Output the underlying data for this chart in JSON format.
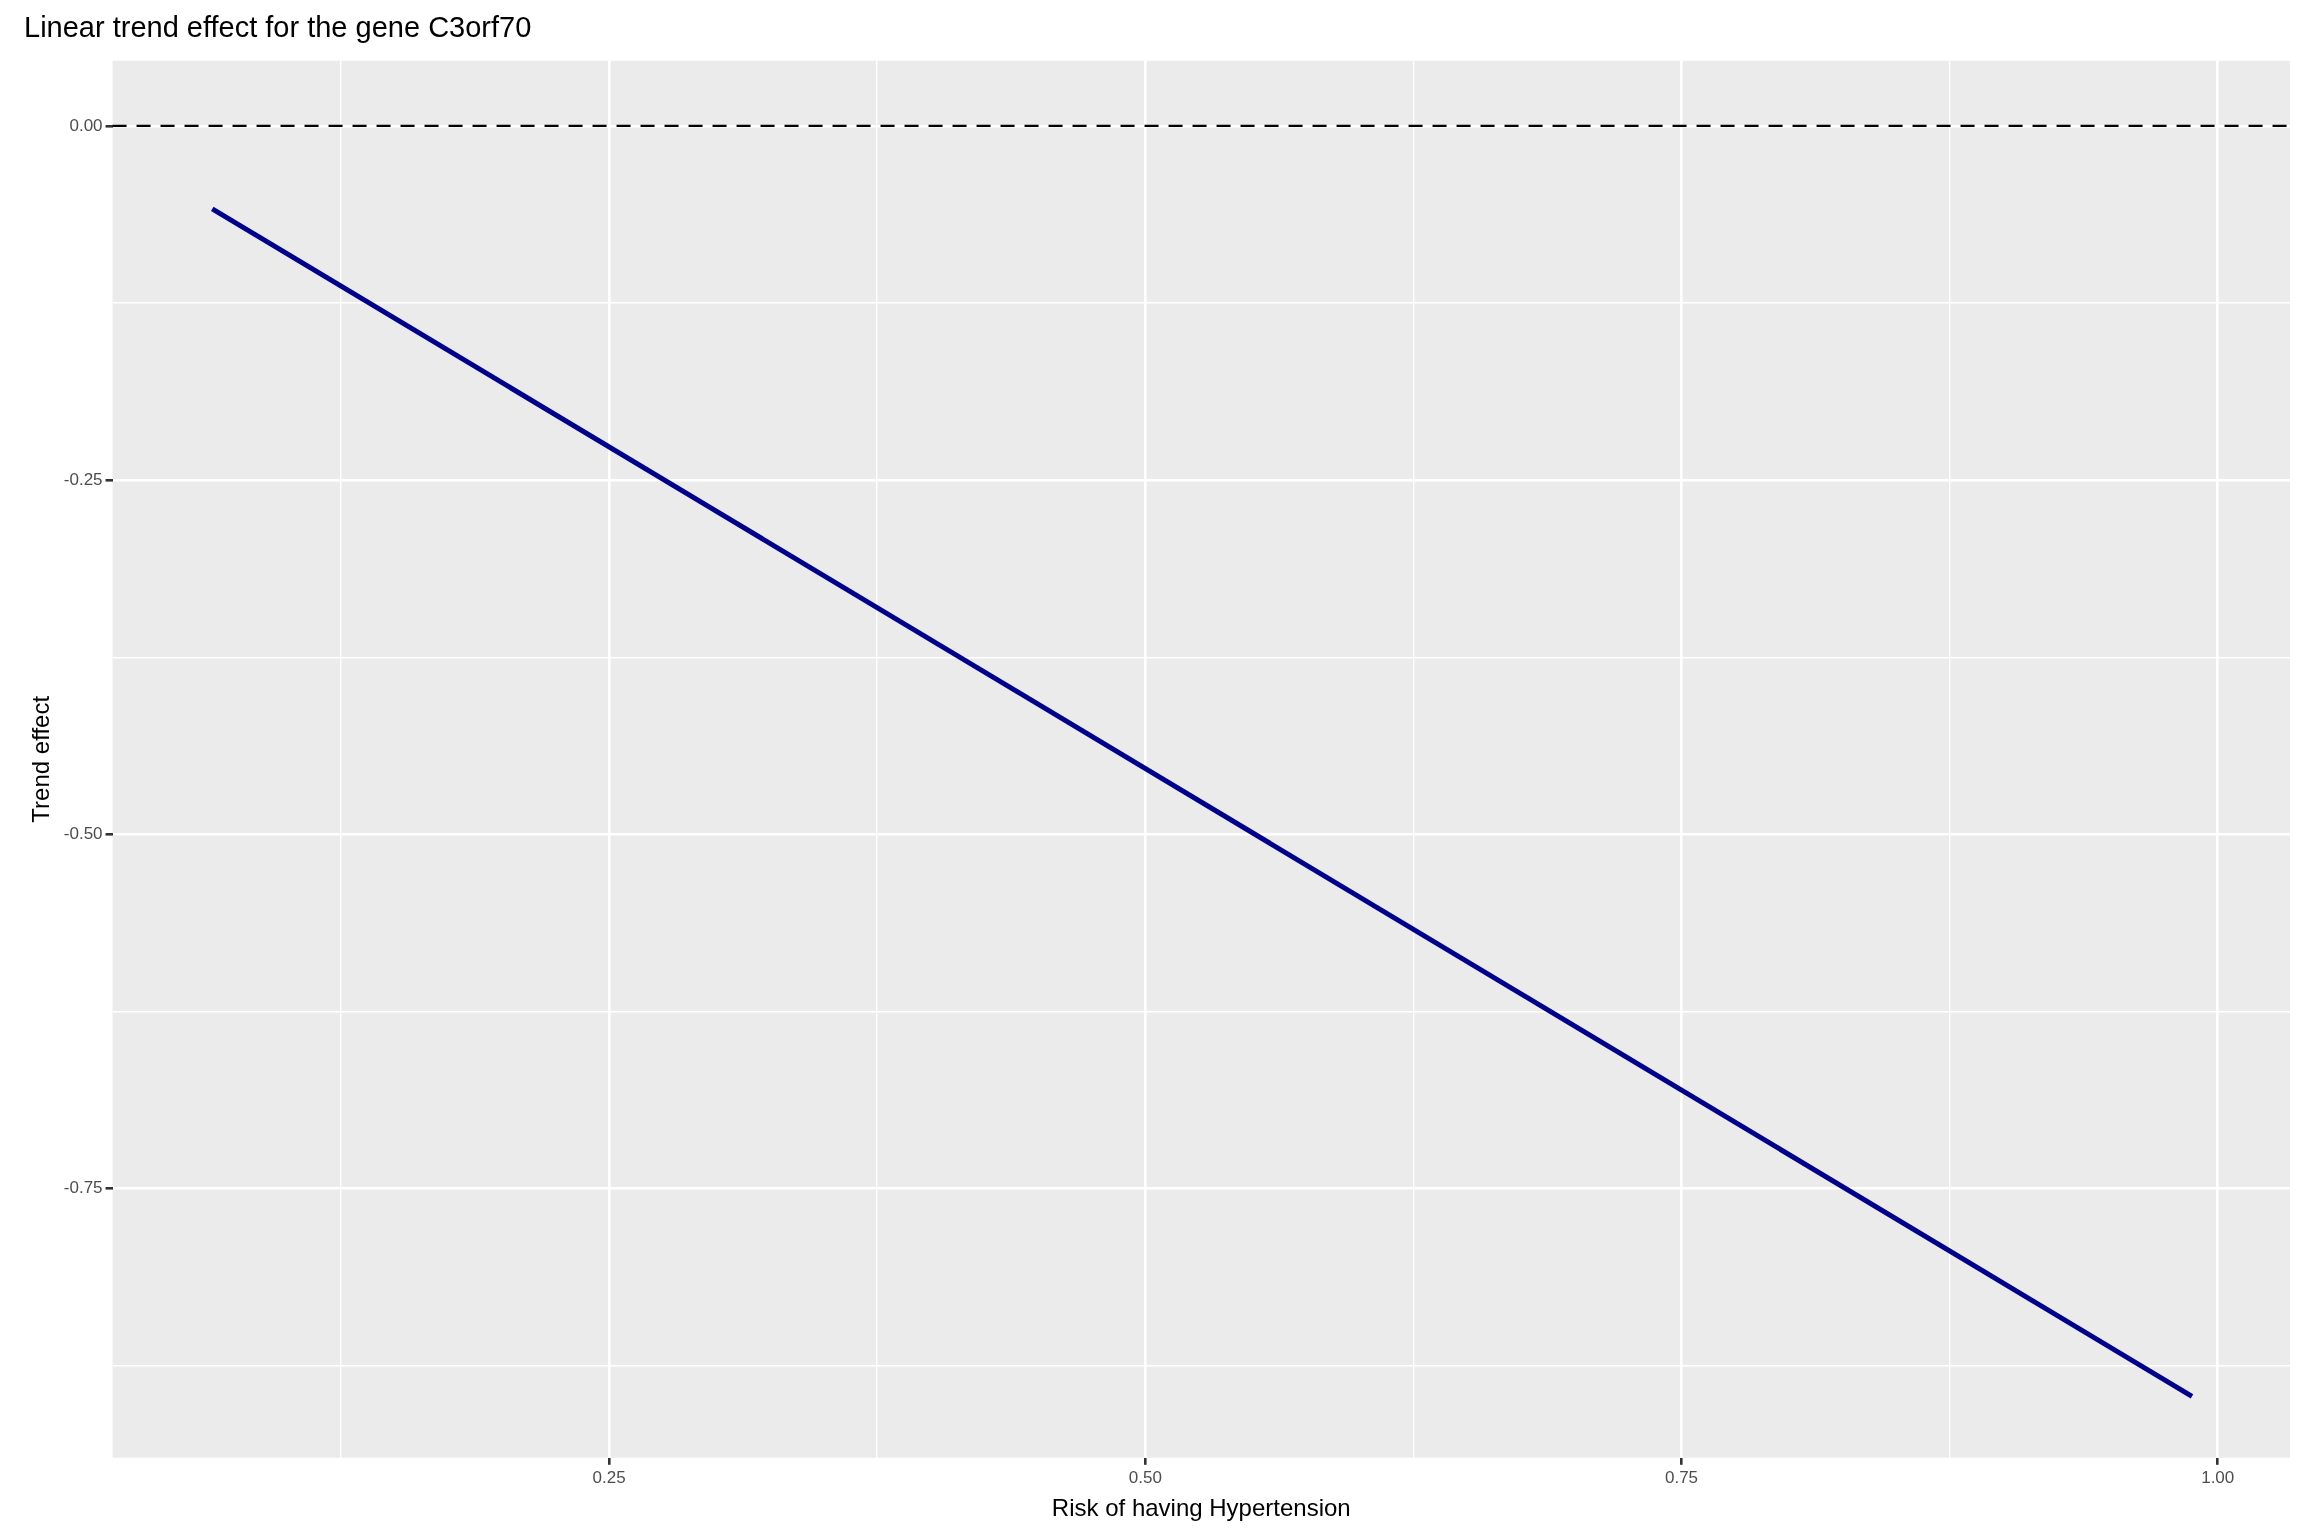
{
  "chart_data": {
    "type": "line",
    "title": "Linear trend effect for the gene C3orf70",
    "xlabel": "Risk of having Hypertension",
    "ylabel": "Trend effect",
    "x": [
      0.065,
      0.988
    ],
    "series": [
      {
        "color": "#00008b",
        "values": [
          -0.0585,
          -0.8966
        ]
      }
    ],
    "xlim": [
      0.0185,
      1.0337
    ],
    "xticks": [
      {
        "value": 0.125,
        "label": null
      },
      0.25,
      {
        "value": 0.375,
        "label": null
      },
      {
        "value": 0.5,
        "label": "0.50"
      },
      {
        "value": 0.625,
        "label": null
      },
      0.75,
      {
        "value": 0.875,
        "label": null
      },
      {
        "value": 1,
        "label": "1.00"
      }
    ],
    "ylim": [
      -0.94,
      0.046
    ],
    "yticks": [
      {
        "value": -0.875,
        "label": null
      },
      -0.75,
      {
        "value": -0.625,
        "label": null
      },
      {
        "value": -0.5,
        "label": "-0.50"
      },
      {
        "value": -0.375,
        "label": null
      },
      -0.25,
      {
        "value": -0.125,
        "label": null
      },
      {
        "value": 0,
        "label": "0.00"
      }
    ],
    "ref_lines": [
      {
        "axis": "y",
        "value": 0,
        "color": "#000000",
        "line_style": "dashed"
      }
    ],
    "grid": true,
    "legend": false,
    "marker": "none",
    "line_style": "solid"
  }
}
